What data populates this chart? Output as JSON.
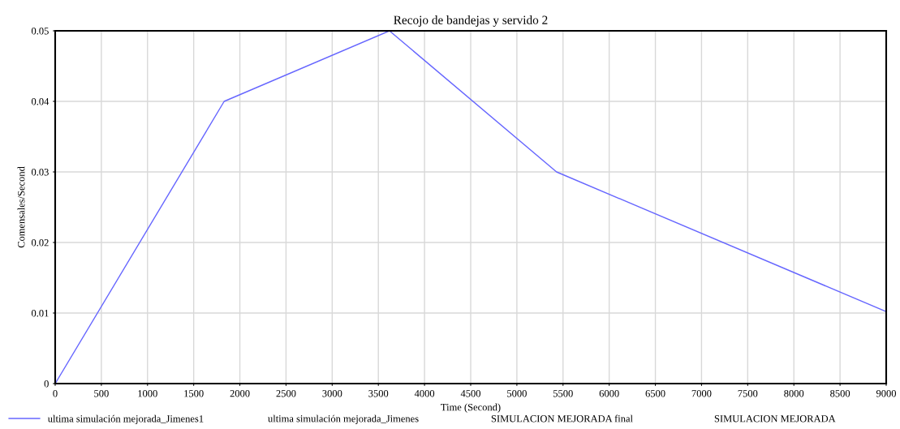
{
  "chart_data": {
    "type": "line",
    "title": "Recojo de bandejas y servido 2",
    "xlabel": "Time (Second)",
    "ylabel": "Comensales/Second",
    "x": [
      0,
      1830,
      3620,
      5430,
      9000
    ],
    "series": [
      {
        "name": "ultima simulación mejorada_Jimenes1",
        "color": "#6666ff",
        "values": [
          0,
          0.04,
          0.05,
          0.03,
          0.0102
        ]
      }
    ],
    "annotations": [
      "ultima simulación mejorada_Jimenes",
      "SIMULACION MEJORADA final",
      "SIMULACION MEJORADA"
    ],
    "xlim": [
      0,
      9000
    ],
    "xticks": [
      0,
      500,
      1000,
      1500,
      2000,
      2500,
      3000,
      3500,
      4000,
      4500,
      5000,
      5500,
      6000,
      6500,
      7000,
      7500,
      8000,
      8500,
      9000
    ],
    "ylim": [
      0,
      0.05
    ],
    "yticks": [
      0,
      0.01,
      0.02,
      0.03,
      0.04,
      0.05
    ],
    "grid": true,
    "legend": "bottom",
    "marker": "none",
    "line_style": "solid"
  }
}
